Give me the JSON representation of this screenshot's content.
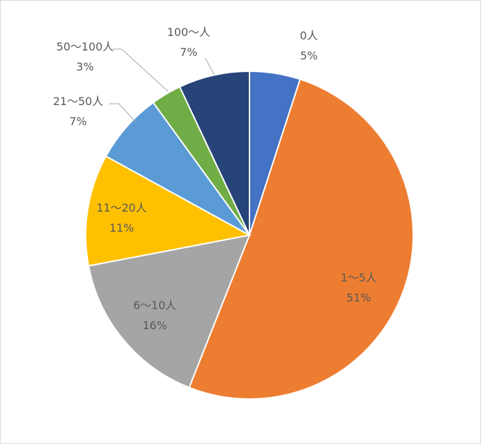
{
  "chart_data": {
    "type": "pie",
    "title": "",
    "start_angle_deg": 0,
    "direction": "clockwise",
    "slices": [
      {
        "category": "0人",
        "value": 5,
        "label": "5%",
        "color": "#4472C4"
      },
      {
        "category": "1〜5人",
        "value": 51,
        "label": "51%",
        "color": "#ED7D31"
      },
      {
        "category": "6〜10人",
        "value": 16,
        "label": "16%",
        "color": "#A5A5A5"
      },
      {
        "category": "11〜20人",
        "value": 11,
        "label": "11%",
        "color": "#FFC000"
      },
      {
        "category": "21〜50人",
        "value": 7,
        "label": "7%",
        "color": "#5B9BD5"
      },
      {
        "category": "50〜100人",
        "value": 3,
        "label": "3%",
        "color": "#70AD47"
      },
      {
        "category": "100〜人",
        "value": 7,
        "label": "7%",
        "color": "#264478"
      }
    ],
    "legend": "none",
    "data_labels": "category-and-percentage"
  }
}
